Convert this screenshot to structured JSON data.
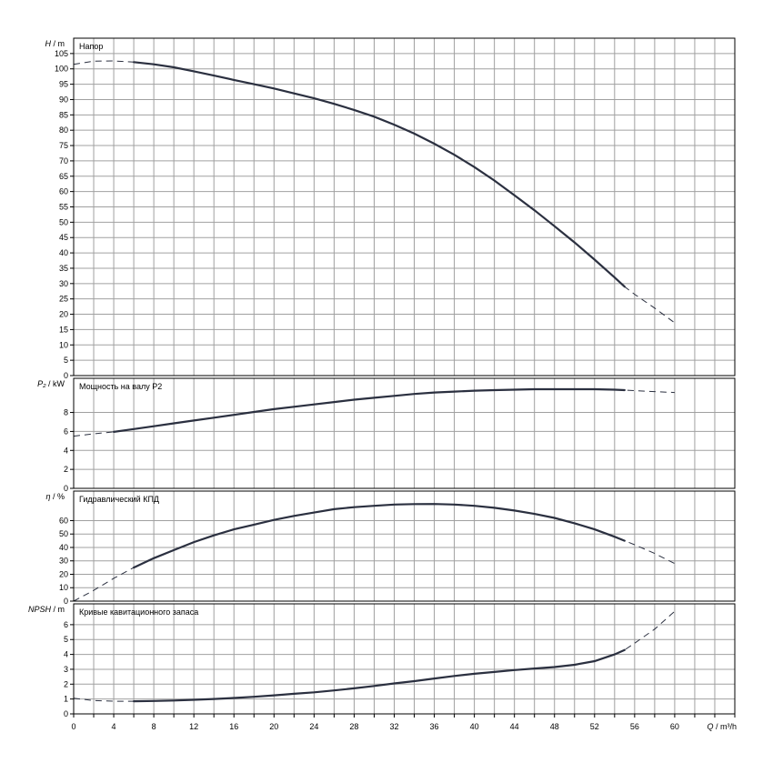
{
  "chart_data": {
    "type": "line",
    "x_axis": {
      "name": "Q",
      "unit": "m³/h",
      "range": [
        0,
        66
      ],
      "tick_labels": [
        "0",
        "4",
        "8",
        "12",
        "16",
        "20",
        "24",
        "28",
        "32",
        "36",
        "40",
        "44",
        "48",
        "52",
        "56",
        "60"
      ],
      "tick_values": [
        0,
        4,
        8,
        12,
        16,
        20,
        24,
        28,
        32,
        36,
        40,
        44,
        48,
        52,
        56,
        60
      ],
      "grid_step": 2
    },
    "panels": [
      {
        "id": "head",
        "title": "Напор",
        "y_name": "H",
        "y_unit": "m",
        "ylim": [
          0,
          110
        ],
        "y_ticks": [
          0,
          5,
          10,
          15,
          20,
          25,
          30,
          35,
          40,
          45,
          50,
          55,
          60,
          65,
          70,
          75,
          80,
          85,
          90,
          95,
          100,
          105
        ],
        "y_tick_labels": [
          "0",
          "5",
          "10",
          "15",
          "20",
          "25",
          "30",
          "35",
          "40",
          "45",
          "50",
          "55",
          "60",
          "65",
          "70",
          "75",
          "80",
          "85",
          "90",
          "95",
          "100",
          "105"
        ],
        "solid_range": [
          6,
          55
        ],
        "points": [
          [
            0,
            101.5
          ],
          [
            2,
            102.5
          ],
          [
            4,
            102.6
          ],
          [
            6,
            102.2
          ],
          [
            8,
            101.5
          ],
          [
            10,
            100.5
          ],
          [
            12,
            99.2
          ],
          [
            14,
            97.8
          ],
          [
            16,
            96.4
          ],
          [
            18,
            95.0
          ],
          [
            20,
            93.6
          ],
          [
            22,
            92.0
          ],
          [
            24,
            90.4
          ],
          [
            26,
            88.6
          ],
          [
            28,
            86.6
          ],
          [
            30,
            84.4
          ],
          [
            32,
            81.8
          ],
          [
            34,
            78.9
          ],
          [
            36,
            75.6
          ],
          [
            38,
            72.0
          ],
          [
            40,
            68.0
          ],
          [
            42,
            63.6
          ],
          [
            44,
            58.8
          ],
          [
            46,
            53.9
          ],
          [
            48,
            48.7
          ],
          [
            50,
            43.4
          ],
          [
            52,
            37.8
          ],
          [
            54,
            32.0
          ],
          [
            55,
            29.0
          ],
          [
            56,
            26.5
          ],
          [
            58,
            22.0
          ],
          [
            60,
            17.2
          ]
        ]
      },
      {
        "id": "power",
        "title": "Мощность на валу P2",
        "y_name": "P₂",
        "y_unit": "kW",
        "ylim": [
          0,
          11.6
        ],
        "y_ticks": [
          0,
          2,
          4,
          6,
          8
        ],
        "y_tick_labels": [
          "0",
          "2",
          "4",
          "6",
          "8"
        ],
        "solid_range": [
          4,
          55
        ],
        "points": [
          [
            0,
            5.5
          ],
          [
            2,
            5.75
          ],
          [
            4,
            5.95
          ],
          [
            6,
            6.25
          ],
          [
            8,
            6.55
          ],
          [
            10,
            6.85
          ],
          [
            12,
            7.15
          ],
          [
            14,
            7.45
          ],
          [
            16,
            7.75
          ],
          [
            18,
            8.05
          ],
          [
            20,
            8.35
          ],
          [
            22,
            8.6
          ],
          [
            24,
            8.85
          ],
          [
            26,
            9.1
          ],
          [
            28,
            9.35
          ],
          [
            30,
            9.55
          ],
          [
            32,
            9.75
          ],
          [
            34,
            9.95
          ],
          [
            36,
            10.1
          ],
          [
            38,
            10.2
          ],
          [
            40,
            10.3
          ],
          [
            42,
            10.35
          ],
          [
            44,
            10.4
          ],
          [
            46,
            10.45
          ],
          [
            48,
            10.45
          ],
          [
            50,
            10.45
          ],
          [
            52,
            10.45
          ],
          [
            54,
            10.4
          ],
          [
            55,
            10.35
          ],
          [
            56,
            10.3
          ],
          [
            58,
            10.2
          ],
          [
            60,
            10.1
          ]
        ]
      },
      {
        "id": "efficiency",
        "title": "Гидравлический КПД",
        "y_name": "η",
        "y_unit": "%",
        "ylim": [
          0,
          82
        ],
        "y_ticks": [
          0,
          10,
          20,
          30,
          40,
          50,
          60
        ],
        "y_tick_labels": [
          "0",
          "10",
          "20",
          "30",
          "40",
          "50",
          "60"
        ],
        "solid_range": [
          6,
          55
        ],
        "points": [
          [
            0,
            0
          ],
          [
            2,
            8
          ],
          [
            4,
            17
          ],
          [
            6,
            25
          ],
          [
            8,
            32
          ],
          [
            10,
            38
          ],
          [
            12,
            44
          ],
          [
            14,
            49
          ],
          [
            16,
            53.5
          ],
          [
            18,
            57
          ],
          [
            20,
            60.5
          ],
          [
            22,
            63.5
          ],
          [
            24,
            66
          ],
          [
            26,
            68.5
          ],
          [
            28,
            70
          ],
          [
            30,
            71
          ],
          [
            32,
            72
          ],
          [
            34,
            72.3
          ],
          [
            36,
            72.4
          ],
          [
            38,
            72
          ],
          [
            40,
            71
          ],
          [
            42,
            69.5
          ],
          [
            44,
            67.5
          ],
          [
            46,
            65
          ],
          [
            48,
            62
          ],
          [
            50,
            58
          ],
          [
            52,
            53.5
          ],
          [
            54,
            48
          ],
          [
            55,
            45
          ],
          [
            56,
            42
          ],
          [
            58,
            35.5
          ],
          [
            60,
            28
          ]
        ]
      },
      {
        "id": "npsh",
        "title": "Кривые кавитационного запаса",
        "y_name": "NPSH",
        "y_unit": "m",
        "ylim": [
          0,
          7.4
        ],
        "y_ticks": [
          0,
          1,
          2,
          3,
          4,
          5,
          6
        ],
        "y_tick_labels": [
          "0",
          "1",
          "2",
          "3",
          "4",
          "5",
          "6"
        ],
        "solid_range": [
          6,
          55
        ],
        "points": [
          [
            0,
            1.05
          ],
          [
            2,
            0.9
          ],
          [
            4,
            0.85
          ],
          [
            6,
            0.85
          ],
          [
            8,
            0.87
          ],
          [
            10,
            0.9
          ],
          [
            12,
            0.95
          ],
          [
            14,
            1.0
          ],
          [
            16,
            1.07
          ],
          [
            18,
            1.15
          ],
          [
            20,
            1.25
          ],
          [
            22,
            1.35
          ],
          [
            24,
            1.45
          ],
          [
            26,
            1.58
          ],
          [
            28,
            1.72
          ],
          [
            30,
            1.88
          ],
          [
            32,
            2.05
          ],
          [
            34,
            2.2
          ],
          [
            36,
            2.38
          ],
          [
            38,
            2.55
          ],
          [
            40,
            2.7
          ],
          [
            42,
            2.82
          ],
          [
            44,
            2.95
          ],
          [
            46,
            3.05
          ],
          [
            48,
            3.15
          ],
          [
            50,
            3.3
          ],
          [
            52,
            3.55
          ],
          [
            54,
            4.0
          ],
          [
            55,
            4.3
          ],
          [
            56,
            4.75
          ],
          [
            58,
            5.7
          ],
          [
            60,
            6.9
          ]
        ]
      }
    ]
  }
}
